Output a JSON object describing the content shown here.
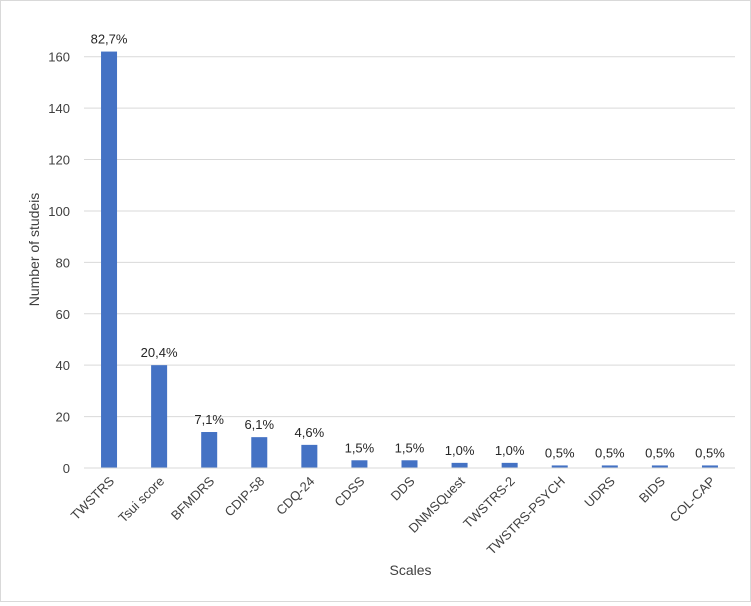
{
  "chart_data": {
    "type": "bar",
    "xlabel": "Scales",
    "ylabel": "Number of studeis",
    "ylim": [
      0,
      170
    ],
    "yticks": [
      0,
      20,
      40,
      60,
      80,
      100,
      120,
      140,
      160
    ],
    "grid": true,
    "legend": "none",
    "bar_color": "#4472c4",
    "categories": [
      "TWSTRS",
      "Tsui score",
      "BFMDRS",
      "CDIP-58",
      "CDQ-24",
      "CDSS",
      "DDS",
      "DNMSQuest",
      "TWSTRS-2",
      "TWSTRS-PSYCH",
      "UDRS",
      "BIDS",
      "COL-CAP"
    ],
    "values": [
      162,
      40,
      14,
      12,
      9,
      3,
      3,
      2,
      2,
      1,
      1,
      1,
      1
    ],
    "data_labels": [
      "82,7%",
      "20,4%",
      "7,1%",
      "6,1%",
      "4,6%",
      "1,5%",
      "1,5%",
      "1,0%",
      "1,0%",
      "0,5%",
      "0,5%",
      "0,5%",
      "0,5%"
    ]
  }
}
